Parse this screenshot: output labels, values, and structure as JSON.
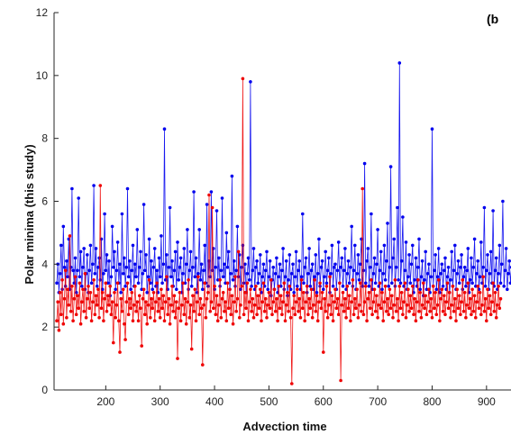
{
  "chart_data": {
    "type": "line",
    "title": "",
    "panel_label": "(b",
    "xlabel": "Advection time",
    "ylabel": "Polar minima (this study)",
    "xlim": [
      105,
      945
    ],
    "ylim": [
      0,
      12
    ],
    "x_ticks": [
      200,
      300,
      400,
      500,
      600,
      700,
      800,
      900
    ],
    "y_ticks": [
      0,
      2,
      4,
      6,
      8,
      10,
      12
    ],
    "grid": false,
    "legend": "none",
    "markers": true,
    "series": [
      {
        "color": "#0000ee",
        "x_start": 110,
        "x_step": 2,
        "values": [
          3.4,
          4.0,
          3.1,
          3.7,
          4.6,
          3.2,
          5.2,
          3.9,
          3.3,
          4.1,
          3.6,
          4.8,
          3.2,
          3.9,
          6.4,
          3.8,
          3.4,
          4.2,
          3.1,
          3.8,
          6.1,
          3.6,
          4.4,
          3.3,
          3.9,
          4.5,
          3.2,
          3.7,
          4.3,
          3.1,
          3.8,
          4.6,
          3.4,
          4.0,
          6.5,
          3.7,
          4.5,
          3.3,
          3.9,
          4.2,
          3.5,
          4.8,
          3.2,
          3.7,
          5.6,
          3.8,
          4.3,
          3.4,
          4.1,
          3.0,
          3.6,
          5.2,
          3.9,
          4.4,
          3.2,
          3.8,
          4.7,
          3.4,
          4.0,
          3.1,
          5.6,
          3.7,
          4.2,
          3.3,
          3.9,
          6.4,
          3.6,
          4.1,
          3.2,
          3.8,
          4.6,
          3.3,
          4.0,
          3.6,
          5.1,
          3.4,
          3.9,
          4.4,
          3.2,
          3.7,
          5.9,
          3.8,
          4.3,
          3.1,
          3.6,
          4.8,
          3.4,
          4.1,
          3.2,
          3.9,
          4.5,
          3.3,
          3.8,
          3.1,
          4.2,
          3.6,
          4.9,
          3.4,
          4.0,
          8.3,
          3.5,
          4.3,
          3.2,
          3.9,
          5.8,
          3.6,
          4.1,
          3.3,
          3.8,
          4.4,
          3.2,
          4.7,
          3.5,
          3.9,
          4.2,
          3.1,
          3.7,
          4.5,
          3.4,
          4.0,
          5.1,
          3.2,
          3.8,
          4.4,
          3.3,
          3.9,
          6.3,
          3.6,
          4.2,
          3.1,
          3.7,
          5.1,
          3.5,
          4.0,
          3.2,
          3.8,
          4.6,
          3.4,
          5.9,
          3.3,
          4.1,
          3.6,
          6.3,
          3.8,
          4.5,
          3.2,
          3.9,
          5.7,
          3.5,
          4.2,
          3.3,
          3.8,
          6.1,
          3.6,
          4.0,
          3.4,
          5.0,
          3.9,
          4.4,
          3.2,
          3.7,
          6.8,
          3.5,
          4.1,
          3.3,
          3.8,
          5.2,
          3.6,
          4.3,
          3.2,
          3.9,
          4.6,
          3.4,
          4.0,
          3.1,
          3.7,
          4.2,
          3.5,
          9.8,
          3.3,
          3.8,
          4.5,
          3.2,
          3.9,
          4.1,
          3.4,
          3.7,
          4.3,
          3.1,
          3.6,
          4.0,
          3.3,
          3.8,
          4.4,
          3.2,
          3.6,
          4.1,
          3.0,
          3.5,
          3.9,
          3.2,
          3.7,
          4.2,
          3.1,
          3.6,
          4.0,
          3.3,
          3.8,
          4.5,
          3.2,
          3.6,
          4.1,
          3.0,
          3.5,
          4.3,
          3.2,
          3.7,
          4.0,
          3.1,
          3.6,
          4.4,
          3.3,
          3.8,
          4.1,
          3.2,
          3.6,
          5.6,
          3.4,
          3.9,
          4.2,
          3.1,
          3.7,
          4.5,
          3.3,
          3.8,
          4.0,
          3.2,
          3.6,
          4.3,
          3.1,
          3.7,
          4.8,
          3.3,
          3.9,
          4.1,
          3.2,
          3.6,
          4.4,
          3.4,
          3.8,
          4.2,
          3.1,
          3.7,
          4.6,
          3.3,
          3.9,
          4.0,
          3.2,
          3.8,
          4.7,
          3.4,
          3.9,
          4.2,
          3.3,
          3.8,
          4.5,
          3.2,
          3.7,
          4.1,
          3.4,
          3.9,
          5.2,
          3.3,
          3.8,
          4.6,
          3.2,
          3.7,
          4.3,
          3.5,
          4.0,
          4.8,
          3.3,
          3.8,
          7.2,
          3.4,
          4.1,
          4.5,
          3.3,
          3.9,
          5.6,
          3.2,
          3.7,
          4.2,
          3.4,
          4.0,
          5.1,
          3.3,
          3.8,
          4.4,
          3.2,
          3.7,
          4.6,
          3.5,
          4.1,
          5.3,
          3.3,
          3.9,
          7.1,
          3.4,
          4.2,
          4.8,
          3.3,
          3.9,
          5.8,
          3.5,
          10.4,
          3.4,
          4.1,
          5.5,
          3.3,
          3.8,
          4.7,
          3.2,
          3.6,
          4.3,
          3.4,
          4.0,
          4.6,
          3.1,
          3.5,
          4.2,
          3.3,
          3.9,
          4.8,
          3.2,
          3.6,
          4.1,
          3.0,
          3.5,
          4.4,
          3.2,
          3.7,
          4.0,
          3.1,
          3.6,
          8.3,
          3.3,
          3.8,
          4.3,
          3.2,
          3.6,
          4.5,
          3.1,
          3.7,
          4.0,
          3.3,
          3.8,
          4.2,
          3.2,
          3.6,
          3.9,
          3.1,
          3.5,
          4.4,
          3.3,
          3.8,
          4.6,
          3.2,
          3.7,
          4.1,
          3.4,
          3.9,
          4.3,
          3.2,
          3.6,
          3.9,
          3.3,
          3.8,
          4.5,
          3.1,
          3.5,
          4.2,
          3.4,
          3.9,
          4.8,
          3.3,
          3.7,
          4.1,
          3.2,
          3.6,
          4.7,
          3.4,
          3.9,
          5.8,
          3.3,
          3.8,
          4.3,
          3.2,
          3.7,
          4.4,
          3.4,
          5.7,
          3.3,
          3.8,
          4.2,
          3.2,
          3.7,
          4.6,
          3.4,
          4.0,
          6.0,
          3.3,
          3.8,
          4.5,
          3.2,
          3.7,
          4.1,
          3.4,
          3.9
        ]
      },
      {
        "color": "#ee0000",
        "x_start": 110,
        "x_step": 2,
        "values": [
          2.2,
          2.8,
          1.9,
          3.1,
          2.4,
          3.5,
          2.1,
          2.9,
          3.8,
          2.3,
          3.2,
          2.7,
          4.9,
          2.5,
          3.3,
          2.2,
          2.9,
          3.6,
          2.4,
          3.0,
          2.6,
          3.4,
          2.1,
          2.8,
          3.2,
          2.5,
          3.7,
          2.3,
          2.9,
          3.3,
          2.6,
          3.1,
          2.2,
          2.8,
          3.5,
          2.4,
          3.0,
          2.7,
          3.2,
          2.3,
          6.5,
          2.6,
          3.1,
          2.2,
          2.9,
          3.4,
          2.5,
          3.0,
          2.7,
          3.3,
          2.4,
          2.8,
          1.5,
          3.1,
          2.3,
          2.7,
          3.4,
          2.2,
          1.2,
          2.9,
          2.5,
          3.2,
          2.1,
          1.6,
          2.8,
          3.4,
          2.4,
          2.9,
          2.6,
          3.1,
          2.2,
          2.7,
          3.3,
          2.5,
          2.8,
          2.2,
          3.0,
          2.6,
          1.4,
          2.9,
          3.2,
          2.4,
          2.8,
          2.1,
          2.7,
          3.5,
          2.3,
          2.9,
          2.6,
          3.1,
          2.2,
          2.8,
          3.4,
          2.5,
          2.9,
          2.3,
          3.2,
          2.6,
          3.0,
          2.2,
          2.8,
          3.6,
          2.4,
          2.9,
          2.1,
          2.7,
          3.3,
          2.5,
          3.0,
          2.3,
          2.8,
          1.0,
          2.6,
          3.1,
          2.2,
          2.7,
          3.4,
          2.4,
          2.9,
          2.1,
          2.8,
          3.5,
          2.3,
          2.7,
          1.3,
          3.0,
          2.5,
          3.2,
          2.2,
          2.8,
          3.6,
          2.4,
          2.9,
          2.6,
          0.8,
          2.7,
          3.4,
          2.3,
          2.9,
          3.1,
          6.2,
          2.5,
          2.8,
          5.8,
          2.6,
          3.3,
          2.4,
          3.0,
          2.2,
          2.7,
          3.5,
          2.3,
          2.9,
          3.1,
          2.5,
          2.8,
          2.2,
          3.4,
          2.6,
          3.2,
          2.4,
          3.0,
          2.1,
          2.8,
          3.6,
          2.5,
          2.9,
          4.4,
          2.3,
          2.7,
          3.3,
          9.9,
          2.4,
          3.1,
          2.6,
          3.4,
          2.2,
          2.8,
          3.2,
          2.5,
          2.9,
          2.3,
          2.7,
          3.3,
          2.4,
          3.0,
          2.6,
          3.2,
          2.2,
          2.8,
          3.4,
          2.5,
          2.9,
          2.3,
          2.7,
          3.1,
          2.6,
          3.5,
          2.4,
          2.8,
          3.2,
          2.5,
          2.9,
          2.2,
          3.3,
          2.6,
          3.0,
          2.4,
          2.8,
          3.4,
          2.2,
          2.7,
          3.1,
          2.5,
          3.3,
          2.3,
          0.2,
          2.6,
          3.0,
          2.4,
          2.8,
          3.2,
          2.5,
          2.9,
          2.3,
          3.5,
          2.6,
          3.1,
          2.2,
          2.8,
          3.3,
          2.4,
          2.9,
          2.6,
          3.2,
          2.3,
          2.7,
          3.5,
          2.5,
          3.0,
          2.2,
          2.8,
          3.4,
          2.6,
          3.1,
          1.2,
          2.9,
          2.5,
          3.3,
          2.3,
          2.7,
          3.6,
          2.4,
          3.0,
          2.2,
          2.8,
          3.2,
          2.6,
          2.9,
          2.4,
          3.4,
          0.3,
          2.7,
          3.1,
          2.5,
          2.9,
          2.3,
          3.3,
          2.6,
          3.0,
          2.2,
          2.8,
          3.5,
          2.4,
          2.9,
          2.6,
          3.2,
          2.3,
          2.7,
          3.4,
          2.5,
          6.4,
          2.4,
          2.8,
          3.3,
          2.2,
          2.9,
          3.1,
          2.6,
          3.5,
          2.4,
          2.8,
          3.2,
          2.5,
          3.0,
          2.3,
          2.7,
          3.4,
          2.6,
          3.1,
          2.2,
          2.8,
          3.3,
          2.5,
          2.9,
          2.4,
          3.2,
          2.6,
          3.0,
          2.3,
          2.7,
          3.5,
          2.5,
          2.9,
          2.2,
          3.3,
          2.6,
          3.1,
          2.4,
          2.8,
          3.4,
          2.3,
          2.7,
          3.2,
          2.5,
          3.0,
          2.6,
          3.3,
          2.4,
          2.9,
          2.2,
          2.8,
          3.5,
          2.5,
          3.1,
          2.3,
          2.7,
          3.4,
          2.6,
          3.0,
          2.4,
          2.8,
          3.2,
          2.5,
          2.9,
          2.3,
          3.3,
          2.6,
          3.1,
          2.4,
          2.7,
          3.5,
          2.2,
          2.9,
          3.2,
          2.5,
          3.0,
          2.4,
          2.8,
          3.4,
          2.6,
          3.1,
          2.3,
          2.7,
          3.3,
          2.5,
          2.9,
          2.2,
          3.2,
          2.6,
          3.0,
          2.4,
          2.8,
          3.5,
          2.5,
          3.1,
          2.3,
          2.7,
          3.4,
          2.6,
          2.9,
          2.4,
          3.2,
          2.5,
          3.0,
          2.3,
          2.8,
          3.3,
          2.6,
          3.1,
          2.4,
          2.7,
          3.6,
          2.5,
          2.9,
          2.2,
          3.2,
          2.6,
          3.0,
          2.4,
          2.8,
          3.4,
          2.5,
          3.1,
          2.3,
          2.7,
          3.3,
          2.6,
          2.9
        ]
      }
    ]
  }
}
